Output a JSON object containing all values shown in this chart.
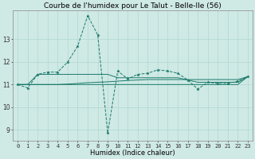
{
  "title": "Courbe de l'humidex pour Le Talut - Belle-Ile (56)",
  "xlabel": "Humidex (Indice chaleur)",
  "bg_color": "#cfe9e5",
  "grid_color": "#b0d8d0",
  "line_color": "#1a7a6a",
  "xlim": [
    -0.5,
    23.5
  ],
  "ylim": [
    8.5,
    14.3
  ],
  "yticks": [
    9,
    10,
    11,
    12,
    13
  ],
  "xticks": [
    0,
    1,
    2,
    3,
    4,
    5,
    6,
    7,
    8,
    9,
    10,
    11,
    12,
    13,
    14,
    15,
    16,
    17,
    18,
    19,
    20,
    21,
    22,
    23
  ],
  "series_volatile": [
    11.0,
    10.85,
    11.45,
    11.55,
    11.55,
    12.0,
    12.7,
    14.05,
    13.2,
    8.85,
    11.6,
    11.25,
    11.45,
    11.5,
    11.65,
    11.6,
    11.5,
    11.2,
    10.8,
    11.1,
    11.05,
    11.05,
    11.15,
    11.35
  ],
  "series_flat1": [
    11.0,
    11.0,
    11.45,
    11.45,
    11.45,
    11.45,
    11.45,
    11.45,
    11.45,
    11.45,
    11.3,
    11.3,
    11.3,
    11.3,
    11.3,
    11.3,
    11.3,
    11.2,
    11.1,
    11.1,
    11.1,
    11.1,
    11.1,
    11.35
  ],
  "series_flat2": [
    11.0,
    11.0,
    11.0,
    11.0,
    11.0,
    11.02,
    11.05,
    11.08,
    11.1,
    11.12,
    11.15,
    11.18,
    11.2,
    11.22,
    11.22,
    11.22,
    11.22,
    11.22,
    11.22,
    11.22,
    11.22,
    11.22,
    11.22,
    11.35
  ],
  "series_trend": [
    11.0,
    11.0,
    11.0,
    11.0,
    11.0,
    11.0,
    11.0,
    11.0,
    11.0,
    11.0,
    11.0,
    11.0,
    11.0,
    11.0,
    11.0,
    11.0,
    11.0,
    11.0,
    11.0,
    11.0,
    11.0,
    11.0,
    11.0,
    11.35
  ],
  "title_fontsize": 6.5,
  "xlabel_fontsize": 6,
  "tick_fontsize": 5
}
